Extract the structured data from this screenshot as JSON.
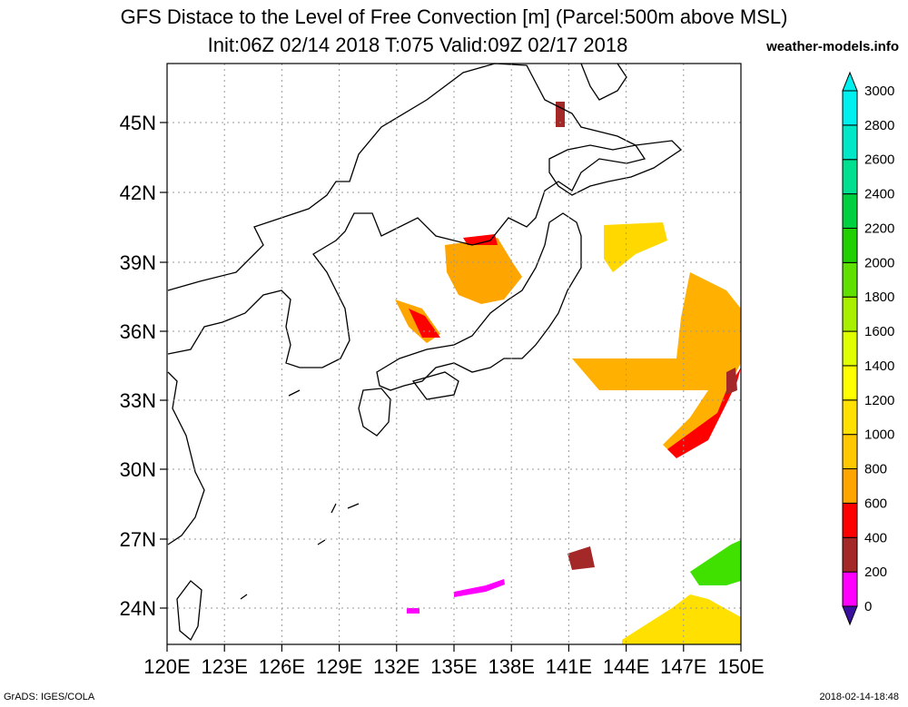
{
  "title_line1": "GFS Distace to the Level of Free Convection [m] (Parcel:500m above MSL)",
  "title_line2": "Init:06Z 02/14 2018 T:075 Valid:09Z 02/17 2018",
  "site": "weather-models.info",
  "footer_left": "GrADS: IGES/COLA",
  "footer_right": "2018-02-14-18:48",
  "lon_ticks": [
    "120E",
    "123E",
    "126E",
    "129E",
    "132E",
    "135E",
    "138E",
    "141E",
    "144E",
    "147E",
    "150E"
  ],
  "lat_ticks": [
    "45N",
    "42N",
    "39N",
    "36N",
    "33N",
    "30N",
    "27N",
    "24N"
  ],
  "colorbar": {
    "labels": [
      "0",
      "200",
      "400",
      "600",
      "800",
      "1000",
      "1200",
      "1400",
      "1600",
      "1800",
      "2000",
      "2200",
      "2400",
      "2600",
      "2800",
      "3000"
    ],
    "colors": [
      "#3a0fa0",
      "#ff00ff",
      "#a52828",
      "#ff0000",
      "#ffa500",
      "#ffc800",
      "#ffe000",
      "#ffff00",
      "#e0ff00",
      "#a8f000",
      "#60e000",
      "#20d000",
      "#00d040",
      "#00e090",
      "#00e8c8",
      "#00f0f0"
    ]
  }
}
